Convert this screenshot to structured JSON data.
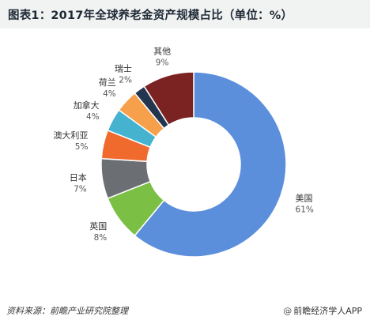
{
  "header": {
    "title": "图表1：2017年全球养老金资产规模占比（单位：%）"
  },
  "footer": {
    "source": "资料来源：前瞻产业研究院整理",
    "brand": "前瞻经济学人APP",
    "brand_icon": "at-sign-icon"
  },
  "chart_data": {
    "type": "pie",
    "variant": "donut",
    "title": "图表1：2017年全球养老金资产规模占比（单位：%）",
    "unit": "%",
    "slices": [
      {
        "label": "美国",
        "value": 61,
        "display": "61%",
        "color": "#5b8fdb"
      },
      {
        "label": "英国",
        "value": 8,
        "display": "8%",
        "color": "#7cbf45"
      },
      {
        "label": "日本",
        "value": 7,
        "display": "7%",
        "color": "#6b6f73"
      },
      {
        "label": "澳大利亚",
        "value": 5,
        "display": "5%",
        "color": "#f06a2e"
      },
      {
        "label": "加拿大",
        "value": 4,
        "display": "4%",
        "color": "#45b3cf"
      },
      {
        "label": "荷兰",
        "value": 4,
        "display": "4%",
        "color": "#f6a04b"
      },
      {
        "label": "瑞士",
        "value": 2,
        "display": "2%",
        "color": "#24364f"
      },
      {
        "label": "其他",
        "value": 9,
        "display": "9%",
        "color": "#7b2323"
      }
    ]
  }
}
